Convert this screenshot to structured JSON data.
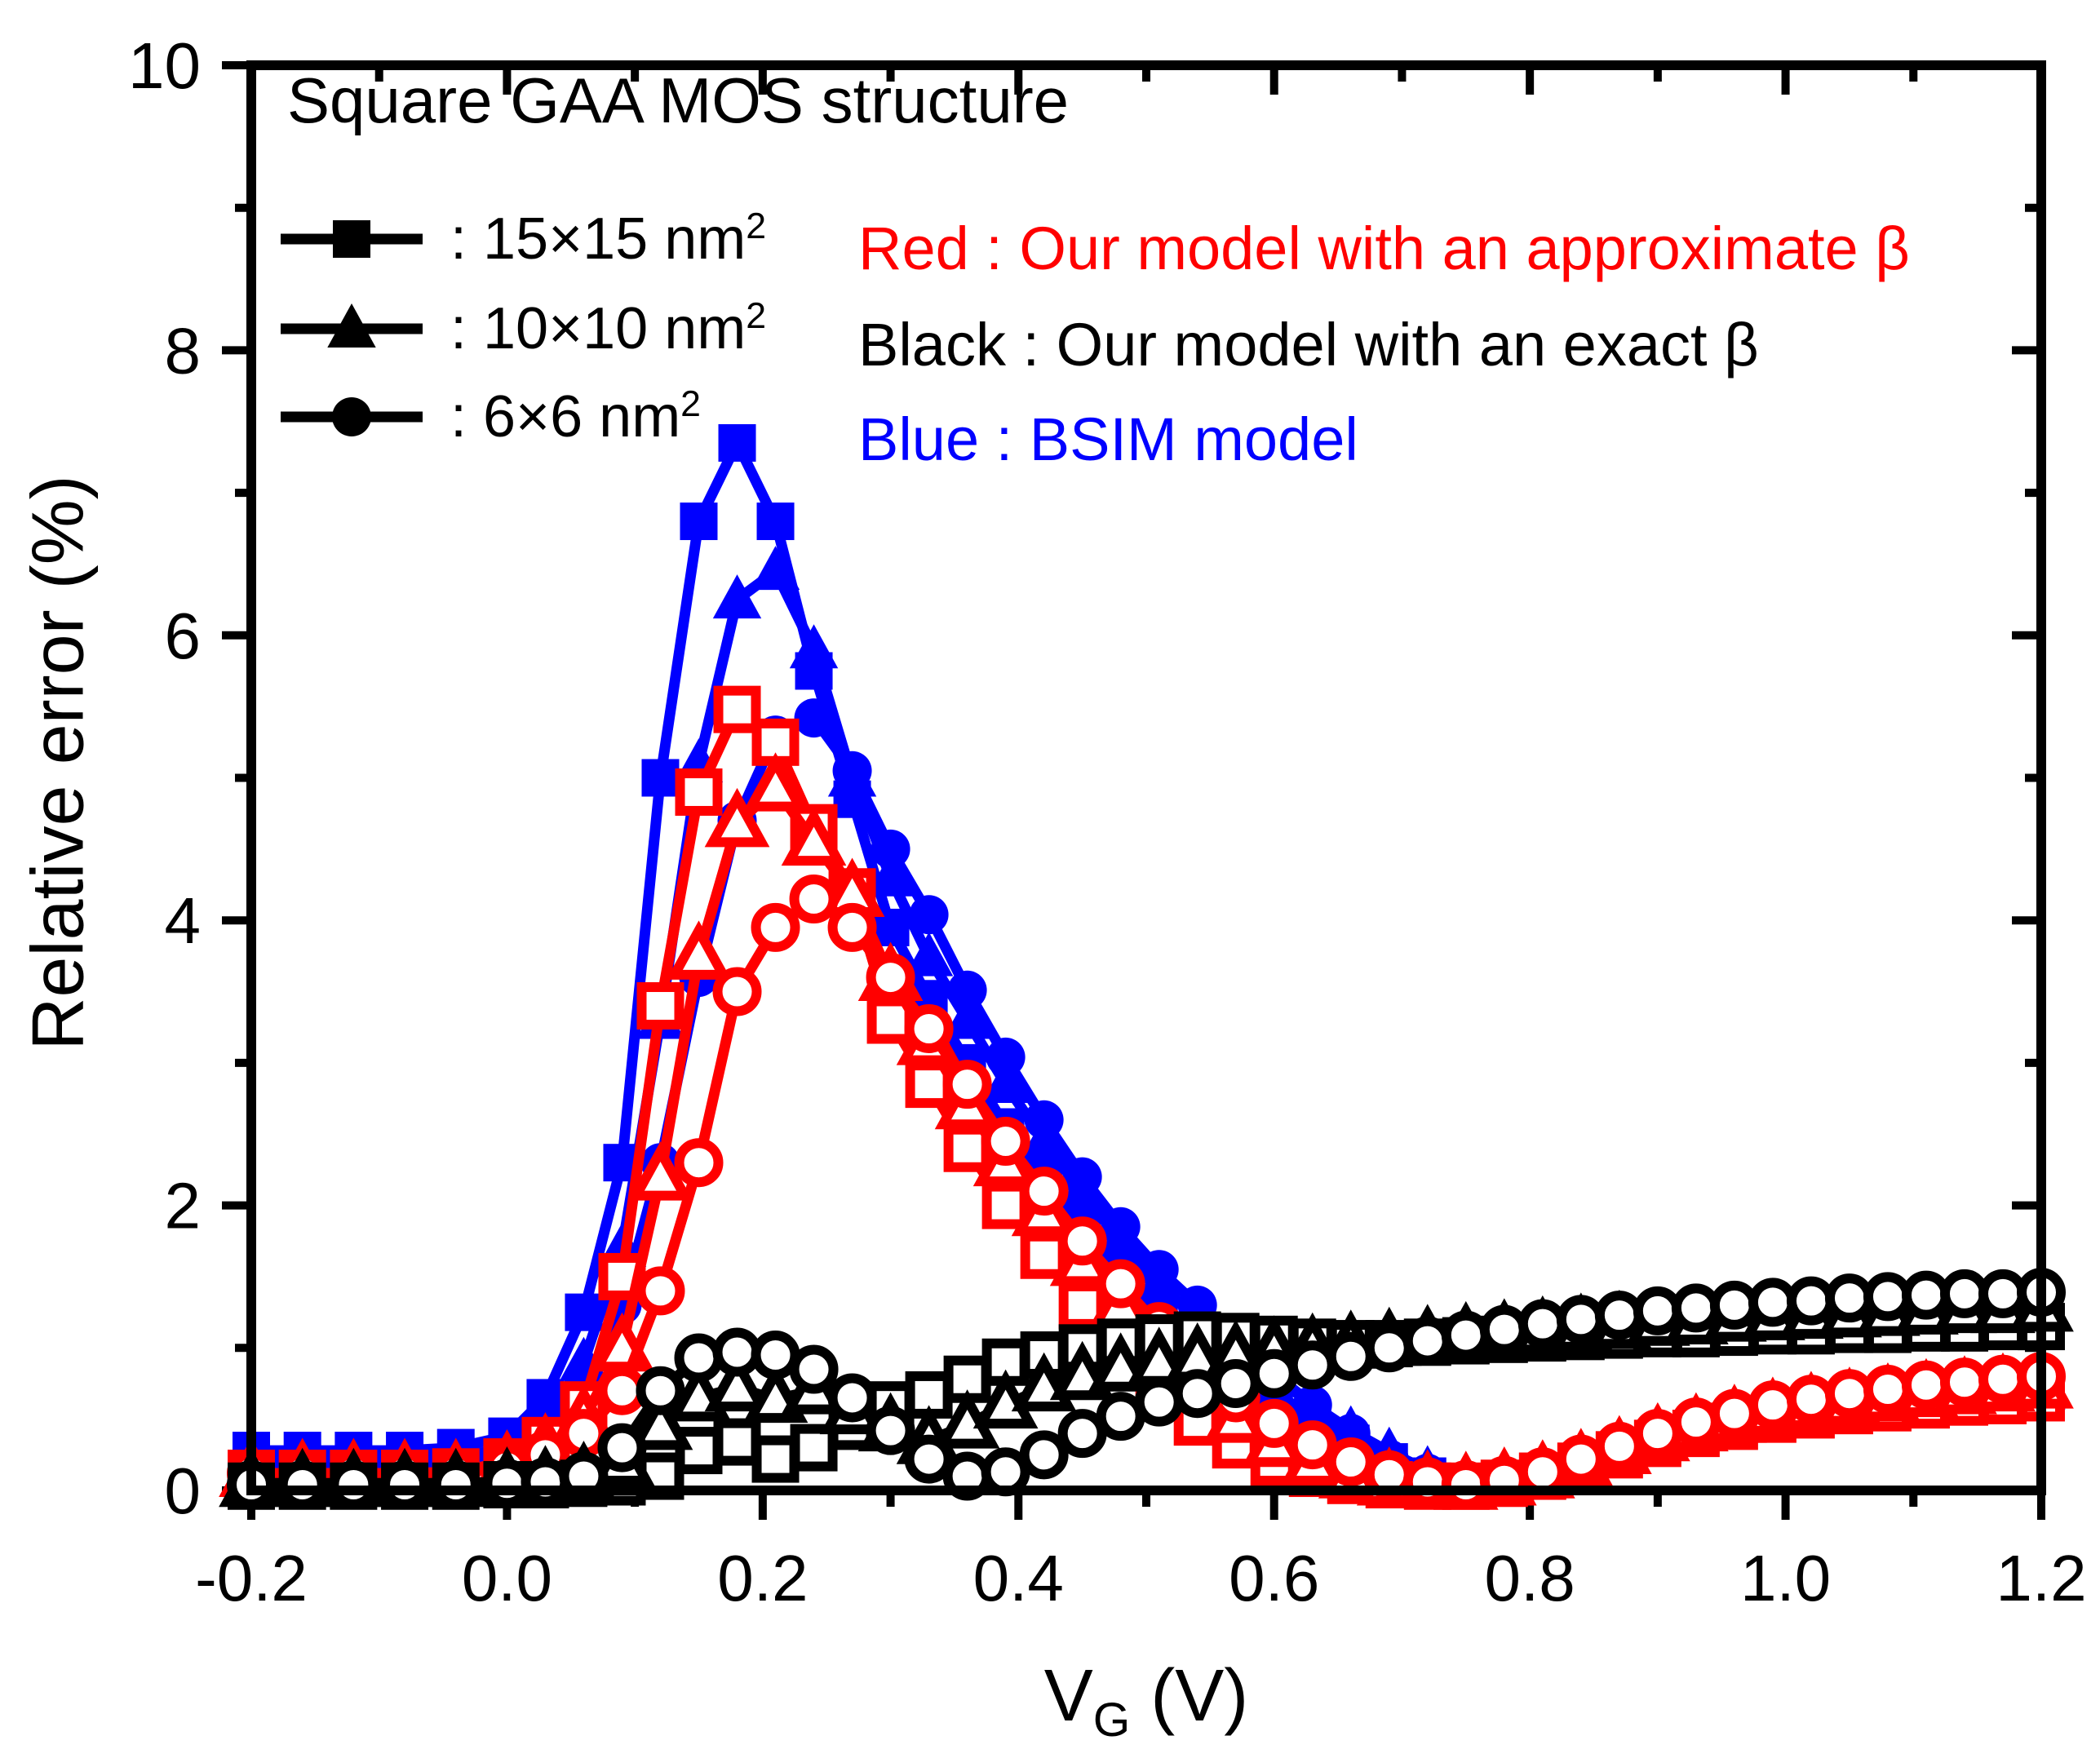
{
  "title": "Square GAA MOS structure",
  "colors": {
    "red": "#ff0000",
    "black": "#000000",
    "blue": "#0000ff",
    "frame": "#000000"
  },
  "legend_sizes": [
    {
      "marker": "square",
      "label_base": ": 15×15 nm",
      "label_sup": "2"
    },
    {
      "marker": "triangle",
      "label_base": ": 10×10 nm",
      "label_sup": "2"
    },
    {
      "marker": "circle",
      "label_base": ": 6×6 nm",
      "label_sup": "2"
    }
  ],
  "legend_colors": [
    {
      "color": "#ff0000",
      "text": "Red : Our model with an approximate β"
    },
    {
      "color": "#000000",
      "text": "Black : Our model with an exact β"
    },
    {
      "color": "#0000ff",
      "text": "Blue : BSIM model"
    }
  ],
  "axes": {
    "xlabel_main": "V",
    "xlabel_sub": "G",
    "xlabel_rest": " (V)",
    "ylabel": "Relative error (%)",
    "x_tick_labels": [
      "-0.2",
      "0.0",
      "0.2",
      "0.4",
      "0.6",
      "0.8",
      "1.0",
      "1.2"
    ],
    "y_tick_labels": [
      "0",
      "2",
      "4",
      "6",
      "8",
      "10"
    ]
  },
  "chart_data": {
    "type": "line",
    "title": "Square GAA MOS structure",
    "xlabel": "VG (V)",
    "ylabel": "Relative error (%)",
    "xlim": [
      -0.2,
      1.2
    ],
    "ylim": [
      0,
      10
    ],
    "x_major_ticks": [
      -0.2,
      0.0,
      0.2,
      0.4,
      0.6,
      0.8,
      1.0,
      1.2
    ],
    "x_minor_step": 0.1,
    "y_major_ticks": [
      0,
      2,
      4,
      6,
      8,
      10
    ],
    "y_minor_step": 1,
    "grid": false,
    "legend_position": "top-left inside",
    "x": [
      -0.2,
      -0.16,
      -0.12,
      -0.08,
      -0.04,
      0.0,
      0.03,
      0.06,
      0.09,
      0.12,
      0.15,
      0.18,
      0.21,
      0.24,
      0.27,
      0.3,
      0.33,
      0.36,
      0.39,
      0.42,
      0.45,
      0.48,
      0.51,
      0.54,
      0.57,
      0.6,
      0.63,
      0.66,
      0.69,
      0.72,
      0.75,
      0.78,
      0.81,
      0.84,
      0.87,
      0.9,
      0.93,
      0.96,
      0.99,
      1.02,
      1.05,
      1.08,
      1.11,
      1.14,
      1.17,
      1.2
    ],
    "series": [
      {
        "name": "BSIM model 15×15 nm2",
        "color": "#0000ff",
        "marker": "square",
        "filled": true,
        "values": [
          0.28,
          0.28,
          0.28,
          0.28,
          0.3,
          0.38,
          0.65,
          1.25,
          2.3,
          5.0,
          6.8,
          7.35,
          6.8,
          5.75,
          4.85,
          3.95,
          3.45,
          3.0,
          2.55,
          2.2,
          1.85,
          1.55,
          1.3,
          1.1,
          0.9,
          0.7,
          0.5,
          0.33,
          0.2,
          0.1,
          0.05,
          0.07,
          0.12,
          0.2,
          0.28,
          0.35,
          0.4,
          0.45,
          0.49,
          0.53,
          0.56,
          0.59,
          0.61,
          0.63,
          0.64,
          0.65
        ]
      },
      {
        "name": "BSIM model 10×10 nm2",
        "color": "#0000ff",
        "marker": "triangle",
        "filled": true,
        "values": [
          0.22,
          0.22,
          0.22,
          0.22,
          0.23,
          0.3,
          0.5,
          0.9,
          1.7,
          3.3,
          5.1,
          6.25,
          6.45,
          5.9,
          5.0,
          4.3,
          3.74,
          3.3,
          2.85,
          2.45,
          2.1,
          1.75,
          1.45,
          1.2,
          1.0,
          0.8,
          0.6,
          0.42,
          0.27,
          0.14,
          0.07,
          0.09,
          0.14,
          0.22,
          0.3,
          0.37,
          0.42,
          0.47,
          0.51,
          0.55,
          0.58,
          0.61,
          0.64,
          0.66,
          0.68,
          0.7
        ]
      },
      {
        "name": "BSIM model 6×6 nm2",
        "color": "#0000ff",
        "marker": "circle",
        "filled": true,
        "values": [
          0.18,
          0.18,
          0.18,
          0.18,
          0.19,
          0.25,
          0.4,
          0.7,
          1.3,
          2.3,
          3.6,
          4.7,
          5.3,
          5.42,
          5.05,
          4.5,
          4.04,
          3.51,
          3.04,
          2.6,
          2.2,
          1.85,
          1.55,
          1.3,
          1.05,
          0.82,
          0.6,
          0.4,
          0.22,
          0.12,
          0.07,
          0.1,
          0.16,
          0.25,
          0.33,
          0.42,
          0.48,
          0.54,
          0.58,
          0.62,
          0.66,
          0.69,
          0.72,
          0.75,
          0.77,
          0.8
        ]
      },
      {
        "name": "Our model approximate beta 15×15 nm2",
        "color": "#ff0000",
        "marker": "square",
        "filled": false,
        "values": [
          0.12,
          0.12,
          0.12,
          0.12,
          0.13,
          0.2,
          0.35,
          0.6,
          1.5,
          3.4,
          4.9,
          5.48,
          5.25,
          4.65,
          4.2,
          3.3,
          2.85,
          2.4,
          2.0,
          1.65,
          1.3,
          1.0,
          0.72,
          0.48,
          0.32,
          0.2,
          0.12,
          0.07,
          0.04,
          0.03,
          0.03,
          0.05,
          0.1,
          0.17,
          0.25,
          0.33,
          0.4,
          0.45,
          0.5,
          0.53,
          0.56,
          0.58,
          0.6,
          0.62,
          0.63,
          0.65
        ]
      },
      {
        "name": "Our model approximate beta 10×10 nm2",
        "color": "#ff0000",
        "marker": "triangle",
        "filled": false,
        "values": [
          0.12,
          0.12,
          0.12,
          0.12,
          0.12,
          0.18,
          0.3,
          0.5,
          1.0,
          2.2,
          3.75,
          4.68,
          4.93,
          4.55,
          4.19,
          3.6,
          3.15,
          2.7,
          2.3,
          1.95,
          1.6,
          1.3,
          1.0,
          0.72,
          0.5,
          0.33,
          0.2,
          0.11,
          0.06,
          0.04,
          0.03,
          0.06,
          0.11,
          0.19,
          0.28,
          0.37,
          0.44,
          0.5,
          0.55,
          0.59,
          0.62,
          0.65,
          0.68,
          0.7,
          0.72,
          0.74
        ]
      },
      {
        "name": "Our model approximate beta 6×6 nm2",
        "color": "#ff0000",
        "marker": "circle",
        "filled": false,
        "values": [
          0.12,
          0.12,
          0.12,
          0.12,
          0.12,
          0.16,
          0.25,
          0.4,
          0.7,
          1.4,
          2.3,
          3.5,
          3.95,
          4.15,
          3.95,
          3.6,
          3.24,
          2.85,
          2.45,
          2.1,
          1.75,
          1.45,
          1.15,
          0.88,
          0.65,
          0.47,
          0.32,
          0.2,
          0.11,
          0.06,
          0.04,
          0.07,
          0.13,
          0.22,
          0.31,
          0.4,
          0.48,
          0.54,
          0.6,
          0.64,
          0.68,
          0.71,
          0.74,
          0.76,
          0.78,
          0.8
        ]
      },
      {
        "name": "Our model exact beta 15×15 nm2",
        "color": "#000000",
        "marker": "square",
        "filled": false,
        "values": [
          0.03,
          0.03,
          0.03,
          0.03,
          0.03,
          0.04,
          0.04,
          0.05,
          0.06,
          0.1,
          0.28,
          0.34,
          0.22,
          0.3,
          0.45,
          0.6,
          0.67,
          0.78,
          0.9,
          0.95,
          1.0,
          1.04,
          1.07,
          1.09,
          1.08,
          1.06,
          1.04,
          1.03,
          1.03,
          1.04,
          1.05,
          1.06,
          1.07,
          1.08,
          1.09,
          1.1,
          1.1,
          1.11,
          1.12,
          1.12,
          1.13,
          1.13,
          1.14,
          1.14,
          1.15,
          1.15
        ]
      },
      {
        "name": "Our model exact beta 10×10 nm2",
        "color": "#000000",
        "marker": "triangle",
        "filled": false,
        "values": [
          0.05,
          0.05,
          0.05,
          0.05,
          0.05,
          0.06,
          0.07,
          0.1,
          0.2,
          0.45,
          0.65,
          0.72,
          0.64,
          0.7,
          0.56,
          0.44,
          0.35,
          0.46,
          0.6,
          0.72,
          0.8,
          0.86,
          0.9,
          0.93,
          0.95,
          0.98,
          1.0,
          1.02,
          1.04,
          1.06,
          1.08,
          1.1,
          1.12,
          1.14,
          1.16,
          1.18,
          1.19,
          1.21,
          1.22,
          1.23,
          1.24,
          1.25,
          1.26,
          1.27,
          1.27,
          1.28
        ]
      },
      {
        "name": "Our model exact beta 6×6 nm2",
        "color": "#000000",
        "marker": "circle",
        "filled": false,
        "values": [
          0.04,
          0.04,
          0.04,
          0.04,
          0.04,
          0.05,
          0.06,
          0.1,
          0.3,
          0.7,
          0.93,
          0.97,
          0.95,
          0.85,
          0.65,
          0.42,
          0.22,
          0.1,
          0.13,
          0.25,
          0.4,
          0.52,
          0.62,
          0.68,
          0.75,
          0.82,
          0.88,
          0.94,
          1.0,
          1.05,
          1.09,
          1.13,
          1.17,
          1.2,
          1.23,
          1.26,
          1.28,
          1.3,
          1.32,
          1.33,
          1.35,
          1.36,
          1.37,
          1.38,
          1.38,
          1.39
        ]
      }
    ]
  }
}
